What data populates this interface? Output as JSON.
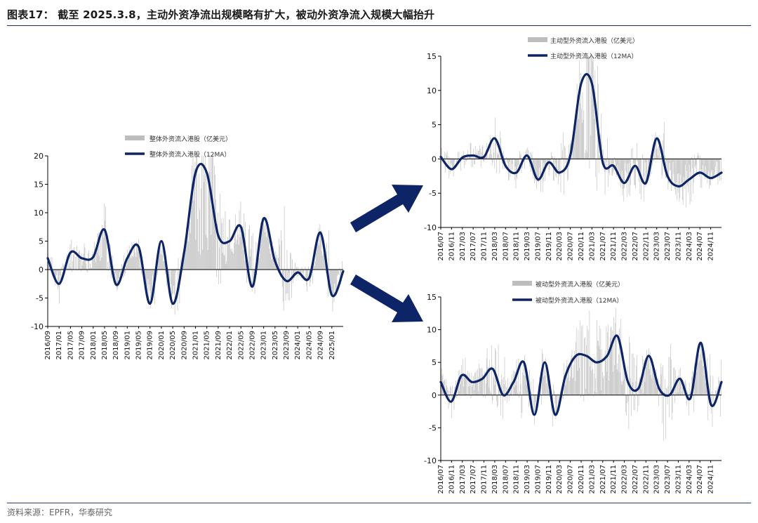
{
  "title": "图表17：  截至 2025.3.8，主动外资净流出规模略有扩大，被动外资净流入规模大幅抬升",
  "source": "资料来源：EPFR，华泰研究",
  "colors": {
    "bar": "#bdbdbd",
    "line": "#0d2566",
    "arrow": "#0d2566",
    "axis": "#000000"
  },
  "icons": {
    "arrow-up-right": "arrow-up-right-icon",
    "arrow-down-right": "arrow-down-right-icon"
  },
  "chart_data": [
    {
      "id": "total",
      "type": "bar+line",
      "title": "",
      "legend": [
        "整体外资流入港股（亿美元）",
        "整体外资流入港股（12MA）"
      ],
      "ylim": [
        -10,
        20
      ],
      "yticks": [
        -10,
        -5,
        0,
        5,
        10,
        15,
        20
      ],
      "xstart": "2016/09",
      "xlabels": [
        "2016/09",
        "2017/01",
        "2017/05",
        "2017/09",
        "2018/01",
        "2018/05",
        "2018/09",
        "2019/01",
        "2019/05",
        "2019/09",
        "2020/01",
        "2020/05",
        "2020/09",
        "2021/01",
        "2021/05",
        "2021/09",
        "2022/01",
        "2022/05",
        "2022/09",
        "2023/01",
        "2023/05",
        "2023/09",
        "2024/01",
        "2024/05",
        "2024/09",
        "2025/01"
      ],
      "bar_env": [
        3,
        -5,
        4,
        3,
        3,
        7,
        -2,
        2,
        3,
        -6,
        4,
        -7,
        5,
        21,
        16,
        7,
        5,
        7,
        3,
        -3,
        10,
        2,
        -3,
        -2,
        8,
        -4
      ],
      "series_12ma": [
        {
          "name": "整体外资流入港股（12MA）",
          "values": [
            2,
            -2.5,
            3,
            2,
            2.2,
            7,
            -2.6,
            2,
            4,
            -6,
            5,
            -6,
            3,
            17,
            17,
            6,
            5,
            7.5,
            -3,
            9,
            1.5,
            -2,
            -0.5,
            -1.5,
            6.5,
            -4.5,
            -0.3
          ]
        }
      ]
    },
    {
      "id": "active",
      "type": "bar+line",
      "legend": [
        "主动型外资流入港股（亿美元）",
        "主动型外资流入港股（12MA）"
      ],
      "ylim": [
        -10,
        15
      ],
      "yticks": [
        -10,
        -5,
        0,
        5,
        10,
        15
      ],
      "xstart": "2016/07",
      "xlabels": [
        "2016/07",
        "2016/11",
        "2017/03",
        "2017/07",
        "2017/11",
        "2018/03",
        "2018/07",
        "2018/11",
        "2019/03",
        "2019/07",
        "2019/11",
        "2020/03",
        "2020/07",
        "2020/11",
        "2021/03",
        "2021/07",
        "2021/11",
        "2022/03",
        "2022/07",
        "2022/11",
        "2023/03",
        "2023/07",
        "2023/11",
        "2024/03",
        "2024/07",
        "2024/11"
      ],
      "bar_env": [
        1,
        -2,
        2,
        1,
        1,
        6,
        -2,
        -3,
        1,
        -4,
        2,
        -7,
        3,
        15,
        12,
        3,
        -3,
        -5,
        -4,
        -2,
        6,
        -3,
        -5,
        -4,
        2,
        -3
      ],
      "series_12ma": [
        {
          "name": "主动型外资流入港股（12MA）",
          "values": [
            0.3,
            -1.5,
            0.2,
            0.5,
            0.3,
            3,
            -1,
            -2,
            0.5,
            -3,
            -0.5,
            -2,
            0.5,
            11,
            11,
            -0.5,
            -1,
            -3.5,
            -1,
            -3.5,
            3,
            -2.5,
            -4,
            -3,
            -2,
            -2.8,
            -2
          ]
        }
      ]
    },
    {
      "id": "passive",
      "type": "bar+line",
      "legend": [
        "被动型外资流入港股（亿美元）",
        "被动型外资流入港股（12MA）"
      ],
      "ylim": [
        -10,
        15
      ],
      "yticks": [
        -10,
        -5,
        0,
        5,
        10,
        15
      ],
      "xstart": "2016/07",
      "xlabels": [
        "2016/07",
        "2016/11",
        "2017/03",
        "2017/07",
        "2017/11",
        "2018/03",
        "2018/07",
        "2018/11",
        "2019/03",
        "2019/07",
        "2019/11",
        "2020/03",
        "2020/07",
        "2020/11",
        "2021/03",
        "2021/07",
        "2021/11",
        "2022/03",
        "2022/07",
        "2022/11",
        "2023/03",
        "2023/07",
        "2023/11",
        "2024/03",
        "2024/07",
        "2024/11"
      ],
      "bar_env": [
        3,
        -4,
        4,
        3,
        4,
        9,
        3,
        -5,
        5,
        -5,
        5,
        -6,
        6,
        9,
        8,
        6,
        6,
        9,
        4,
        -2,
        10,
        3,
        -3,
        -2,
        8,
        -4
      ],
      "series_12ma": [
        {
          "name": "被动型外资流入港股（12MA）",
          "values": [
            2,
            -1,
            3,
            2,
            2.5,
            4,
            0,
            2,
            5,
            -3,
            5,
            -3,
            3,
            6,
            6,
            5,
            6,
            9,
            2,
            1,
            6,
            1,
            0,
            2.5,
            -0.5,
            8,
            -1.5,
            2
          ]
        }
      ]
    }
  ]
}
